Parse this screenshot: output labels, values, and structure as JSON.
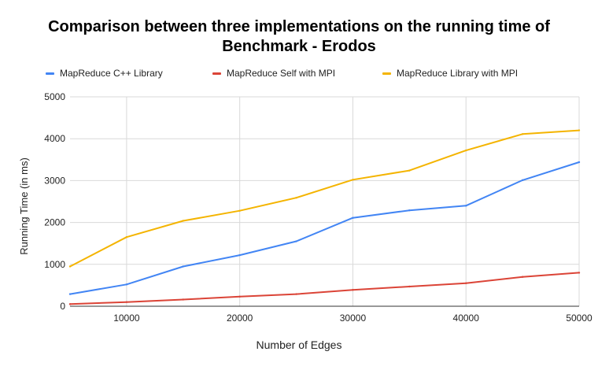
{
  "chart_data": {
    "type": "line",
    "title_lines": [
      "Comparison between three implementations on the running time of",
      "Benchmark - Erodos"
    ],
    "xlabel": "Number of Edges",
    "ylabel": "Running Time (in ms)",
    "xlim": [
      5000,
      50000
    ],
    "ylim": [
      0,
      5000
    ],
    "x_ticks": [
      10000,
      20000,
      30000,
      40000,
      50000
    ],
    "y_ticks": [
      0,
      1000,
      2000,
      3000,
      4000,
      5000
    ],
    "grid": true,
    "legend_position": "top",
    "x": [
      5000,
      10000,
      15000,
      20000,
      25000,
      30000,
      35000,
      40000,
      45000,
      50000
    ],
    "series": [
      {
        "name": "MapReduce C++ Library",
        "color": "#4285f4",
        "values": [
          290,
          520,
          950,
          1220,
          1550,
          2110,
          2290,
          2400,
          3010,
          3440
        ]
      },
      {
        "name": "MapReduce Self with MPI",
        "color": "#db4437",
        "values": [
          50,
          100,
          160,
          230,
          290,
          390,
          470,
          550,
          700,
          800
        ]
      },
      {
        "name": "MapReduce Library with MPI",
        "color": "#f4b400",
        "values": [
          950,
          1650,
          2040,
          2280,
          2590,
          3020,
          3240,
          3720,
          4110,
          4200
        ]
      }
    ]
  }
}
